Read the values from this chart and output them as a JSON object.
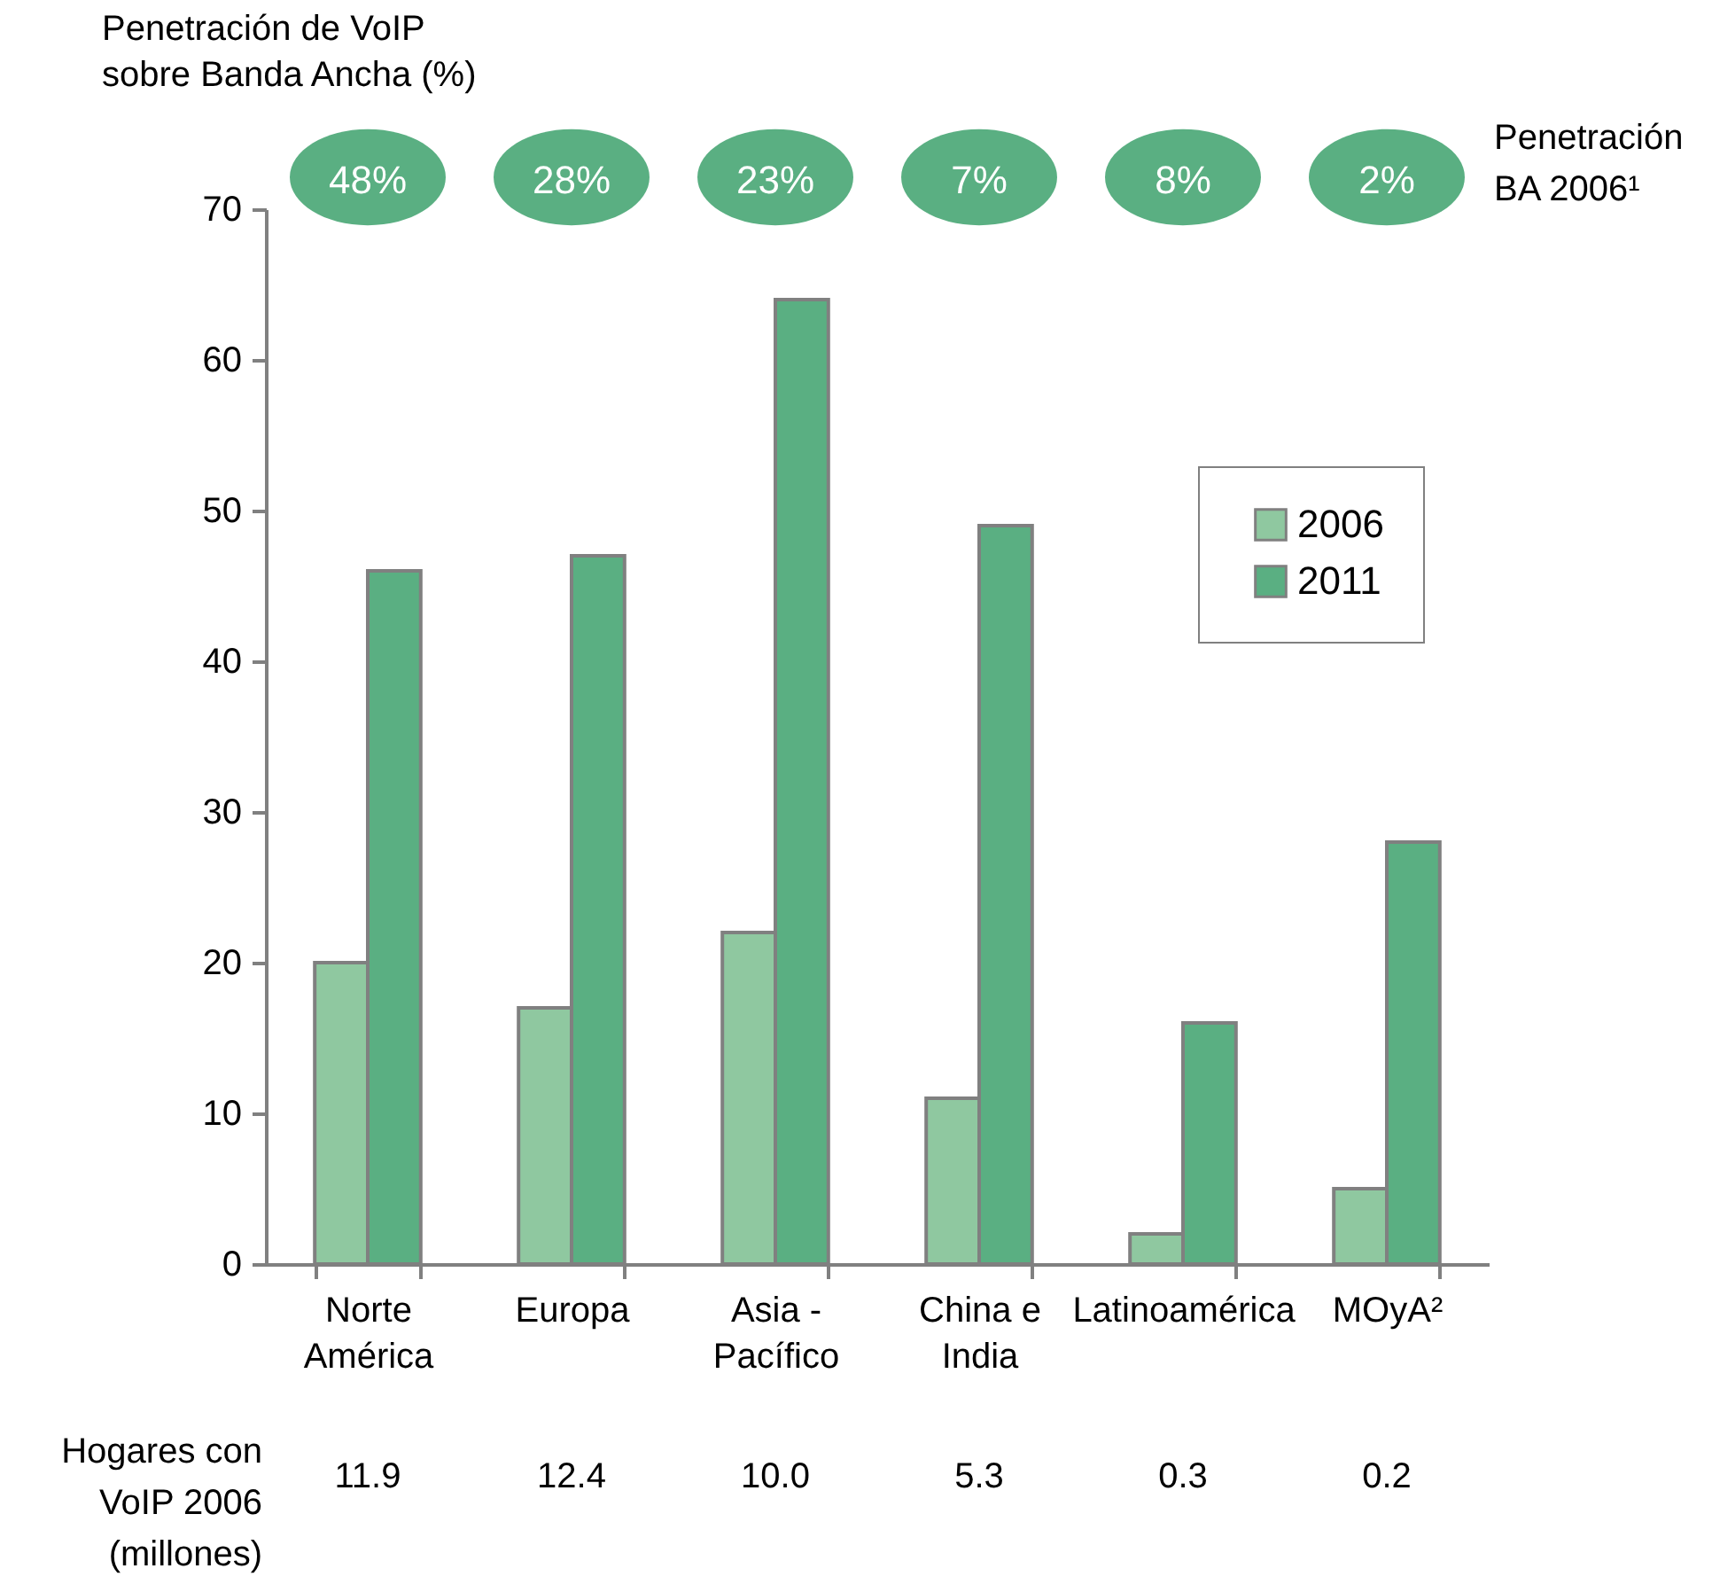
{
  "chart_data": {
    "type": "bar",
    "ylabel": "Penetración de VoIP\nsobre Banda Ancha (%)",
    "categories": [
      "Norte\nAmérica",
      "Europa",
      "Asia -\nPacífico",
      "China e\nIndia",
      "Latinoamérica",
      "MOyA²"
    ],
    "series": [
      {
        "name": "2006",
        "color": "#8fc8a0",
        "values": [
          20,
          17,
          22,
          11,
          2,
          5
        ]
      },
      {
        "name": "2011",
        "color": "#5aaf82",
        "values": [
          46,
          47,
          64,
          49,
          16,
          28
        ]
      }
    ],
    "ylim": [
      0,
      70
    ],
    "yticks": [
      0,
      10,
      20,
      30,
      40,
      50,
      60,
      70
    ],
    "grid": false,
    "legend": "top right",
    "annotations": [
      "Penetración\nBA  2006¹",
      "Hogares con\nVoIP 2006\n(millones)",
      "48%",
      "28%",
      "23%",
      "7%",
      "8%",
      "2%",
      "11.9",
      "12.4",
      "10.0",
      "5.3",
      "0.3",
      "0.2"
    ]
  }
}
